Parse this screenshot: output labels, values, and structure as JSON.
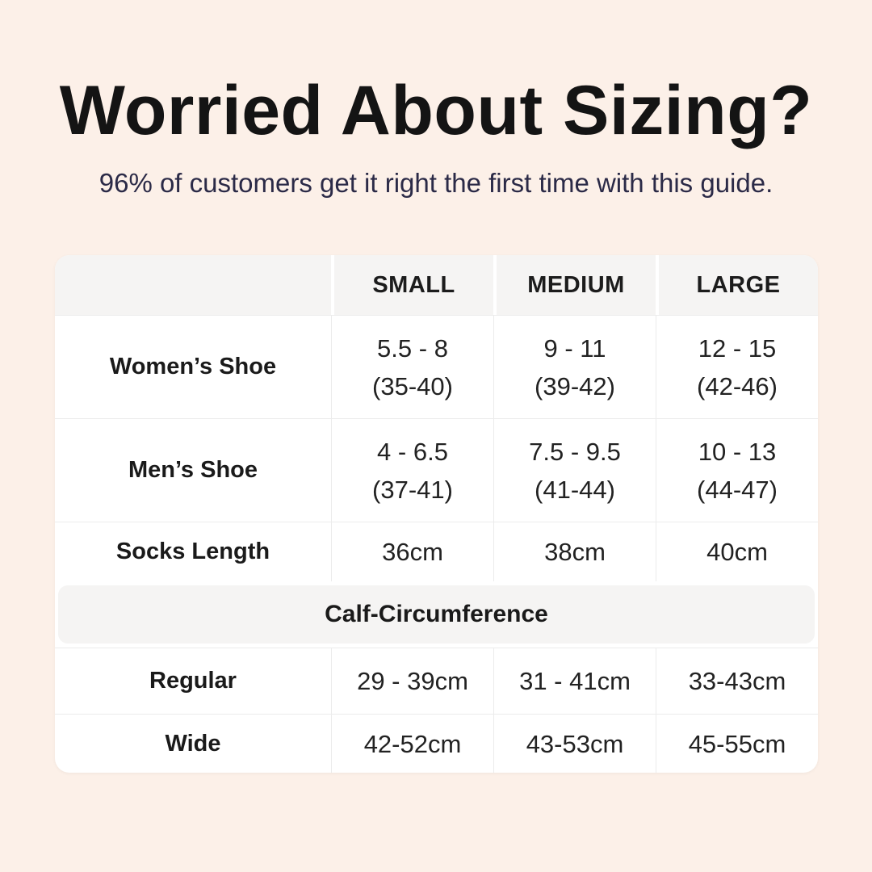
{
  "page": {
    "background_color": "#fcf0e8",
    "card_color": "#ffffff",
    "band_color": "#f5f4f3",
    "title_color": "#141414",
    "subtitle_color": "#2b2a47"
  },
  "header": {
    "title": "Worried About Sizing?",
    "subtitle": "96% of customers get it right the first time with this guide."
  },
  "table": {
    "size_headers": [
      "SMALL",
      "MEDIUM",
      "LARGE"
    ],
    "rows": [
      {
        "label": "Women’s Shoe",
        "cells": [
          {
            "line1": "5.5 - 8",
            "line2": "(35-40)"
          },
          {
            "line1": "9 - 11",
            "line2": "(39-42)"
          },
          {
            "line1": "12 - 15",
            "line2": "(42-46)"
          }
        ]
      },
      {
        "label": "Men’s Shoe",
        "cells": [
          {
            "line1": "4 - 6.5",
            "line2": "(37-41)"
          },
          {
            "line1": "7.5 - 9.5",
            "line2": "(41-44)"
          },
          {
            "line1": "10 - 13",
            "line2": "(44-47)"
          }
        ]
      },
      {
        "label": "Socks Length",
        "cells": [
          {
            "line1": "36cm"
          },
          {
            "line1": "38cm"
          },
          {
            "line1": "40cm"
          }
        ]
      }
    ],
    "section_header": "Calf-Circumference",
    "calf_rows": [
      {
        "label": "Regular",
        "cells": [
          {
            "line1": "29 - 39cm"
          },
          {
            "line1": "31 - 41cm"
          },
          {
            "line1": "33-43cm"
          }
        ]
      },
      {
        "label": "Wide",
        "cells": [
          {
            "line1": "42-52cm"
          },
          {
            "line1": "43-53cm"
          },
          {
            "line1": "45-55cm"
          }
        ]
      }
    ]
  },
  "chart_data": {
    "type": "table",
    "title": "Worried About Sizing?",
    "subtitle": "96% of customers get it right the first time with this guide.",
    "columns": [
      "",
      "SMALL",
      "MEDIUM",
      "LARGE"
    ],
    "rows": [
      [
        "Women’s Shoe",
        "5.5 - 8 (35-40)",
        "9 - 11 (39-42)",
        "12 - 15 (42-46)"
      ],
      [
        "Men’s Shoe",
        "4 - 6.5 (37-41)",
        "7.5 - 9.5 (41-44)",
        "10 - 13 (44-47)"
      ],
      [
        "Socks Length",
        "36cm",
        "38cm",
        "40cm"
      ],
      [
        "Calf-Circumference",
        "",
        "",
        ""
      ],
      [
        "Regular",
        "29 - 39cm",
        "31 - 41cm",
        "33-43cm"
      ],
      [
        "Wide",
        "42-52cm",
        "43-53cm",
        "45-55cm"
      ]
    ],
    "layout": {
      "section_header_row_index": 3,
      "section_header_spans_all_columns": true,
      "grid": "light-gray row and column separators, gray header band"
    }
  }
}
